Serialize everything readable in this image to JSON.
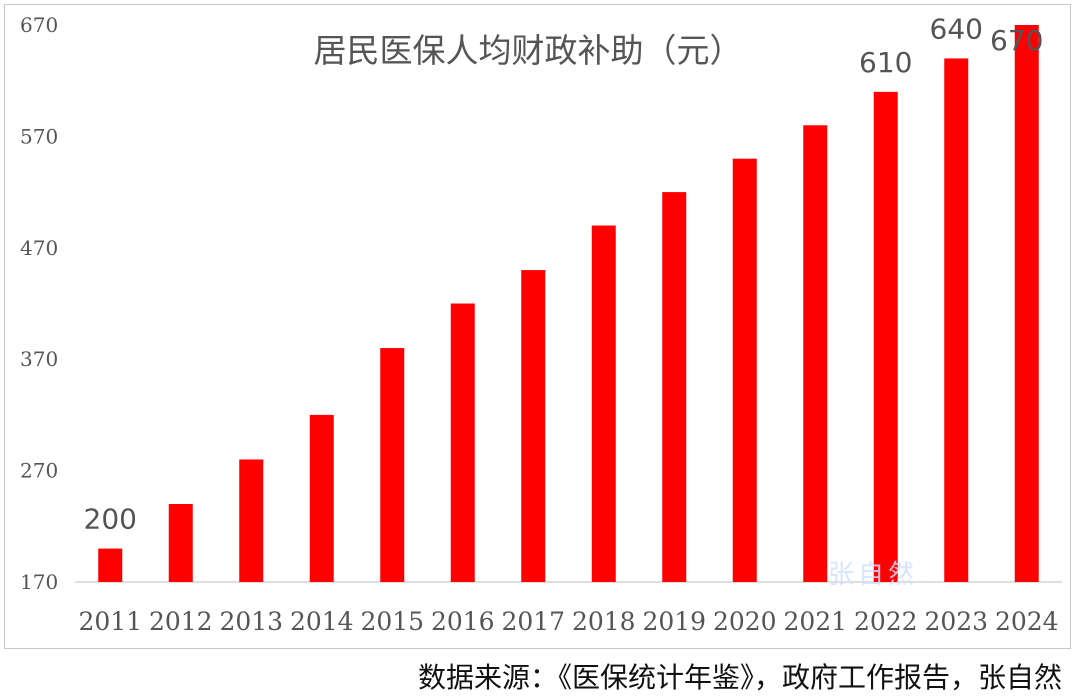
{
  "chart_data": {
    "type": "bar",
    "title": "居民医保人均财政补助（元）",
    "categories": [
      "2011",
      "2012",
      "2013",
      "2014",
      "2015",
      "2016",
      "2017",
      "2018",
      "2019",
      "2020",
      "2021",
      "2022",
      "2023",
      "2024"
    ],
    "values": [
      200,
      240,
      280,
      320,
      380,
      420,
      450,
      490,
      520,
      550,
      580,
      610,
      640,
      670
    ],
    "data_labels": [
      {
        "index": 0,
        "text": "200"
      },
      {
        "index": 11,
        "text": "610"
      },
      {
        "index": 12,
        "text": "640"
      },
      {
        "index": 13,
        "text": "670"
      }
    ],
    "yticks": [
      "170",
      "270",
      "370",
      "470",
      "570",
      "670"
    ],
    "ylim": [
      170,
      670
    ],
    "bar_color": "#ff0000",
    "grid": false
  },
  "watermark": "张自然",
  "source": "数据来源：《医保统计年鉴》，政府工作报告，张自然"
}
